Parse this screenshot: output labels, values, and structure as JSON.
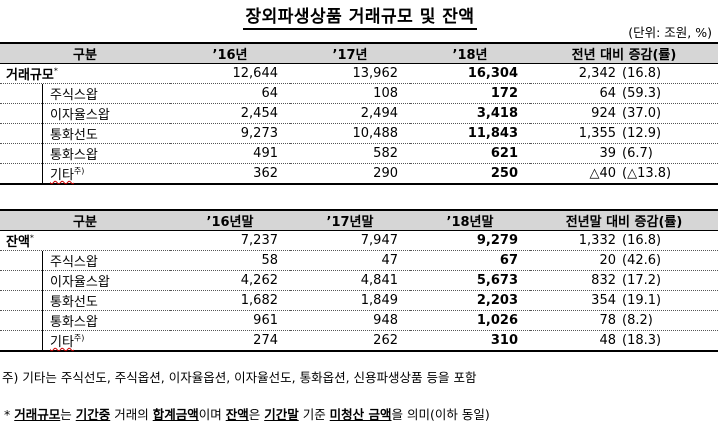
{
  "title": "장외파생상품 거래규모 및 잔액",
  "unit": "(단위: 조원, %)",
  "table1": {
    "headers": [
      "구분",
      "’16년",
      "’17년",
      "’18년",
      "전년 대비 증감(률)"
    ],
    "rows": [
      {
        "label": "거래규모",
        "mark": "*",
        "v16": "12,644",
        "v17": "13,962",
        "v18": "16,304",
        "chg": "2,342",
        "rate": "(16.8)"
      },
      {
        "label": "주식스왑",
        "mark": "",
        "v16": "64",
        "v17": "108",
        "v18": "172",
        "chg": "64",
        "rate": "(59.3)"
      },
      {
        "label": "이자율스왑",
        "mark": "",
        "v16": "2,454",
        "v17": "2,494",
        "v18": "3,418",
        "chg": "924",
        "rate": "(37.0)"
      },
      {
        "label": "통화선도",
        "mark": "",
        "v16": "9,273",
        "v17": "10,488",
        "v18": "11,843",
        "chg": "1,355",
        "rate": "(12.9)"
      },
      {
        "label": "통화스왑",
        "mark": "",
        "v16": "491",
        "v17": "582",
        "v18": "621",
        "chg": "39",
        "rate": "(6.7)"
      },
      {
        "label": "기타",
        "mark": "주)",
        "v16": "362",
        "v17": "290",
        "v18": "250",
        "chg": "△40",
        "rate": "(△13.8)"
      }
    ]
  },
  "table2": {
    "headers": [
      "구분",
      "’16년말",
      "’17년말",
      "’18년말",
      "전년말 대비 증감(률)"
    ],
    "rows": [
      {
        "label": "잔액",
        "mark": "*",
        "v16": "7,237",
        "v17": "7,947",
        "v18": "9,279",
        "chg": "1,332",
        "rate": "(16.8)"
      },
      {
        "label": "주식스왑",
        "mark": "",
        "v16": "58",
        "v17": "47",
        "v18": "67",
        "chg": "20",
        "rate": "(42.6)"
      },
      {
        "label": "이자율스왑",
        "mark": "",
        "v16": "4,262",
        "v17": "4,841",
        "v18": "5,673",
        "chg": "832",
        "rate": "(17.2)"
      },
      {
        "label": "통화선도",
        "mark": "",
        "v16": "1,682",
        "v17": "1,849",
        "v18": "2,203",
        "chg": "354",
        "rate": "(19.1)"
      },
      {
        "label": "통화스왑",
        "mark": "",
        "v16": "961",
        "v17": "948",
        "v18": "1,026",
        "chg": "78",
        "rate": "(8.2)"
      },
      {
        "label": "기타",
        "mark": "주)",
        "v16": "274",
        "v17": "262",
        "v18": "310",
        "chg": "48",
        "rate": "(18.3)"
      }
    ]
  },
  "notes": {
    "note1": "주) 기타는 주식선도, 주식옵션, 이자율옵션, 이자율선도, 통화옵션, 신용파생상품 등을 포함",
    "note2_parts": [
      "* ",
      "거래규모",
      "는 ",
      "기간중",
      " 거래의 ",
      "합계금액",
      "이며 ",
      "잔액",
      "은 ",
      "기간말",
      " 기준 ",
      "미청산 금액",
      "을 의미(이하 동일)"
    ]
  }
}
